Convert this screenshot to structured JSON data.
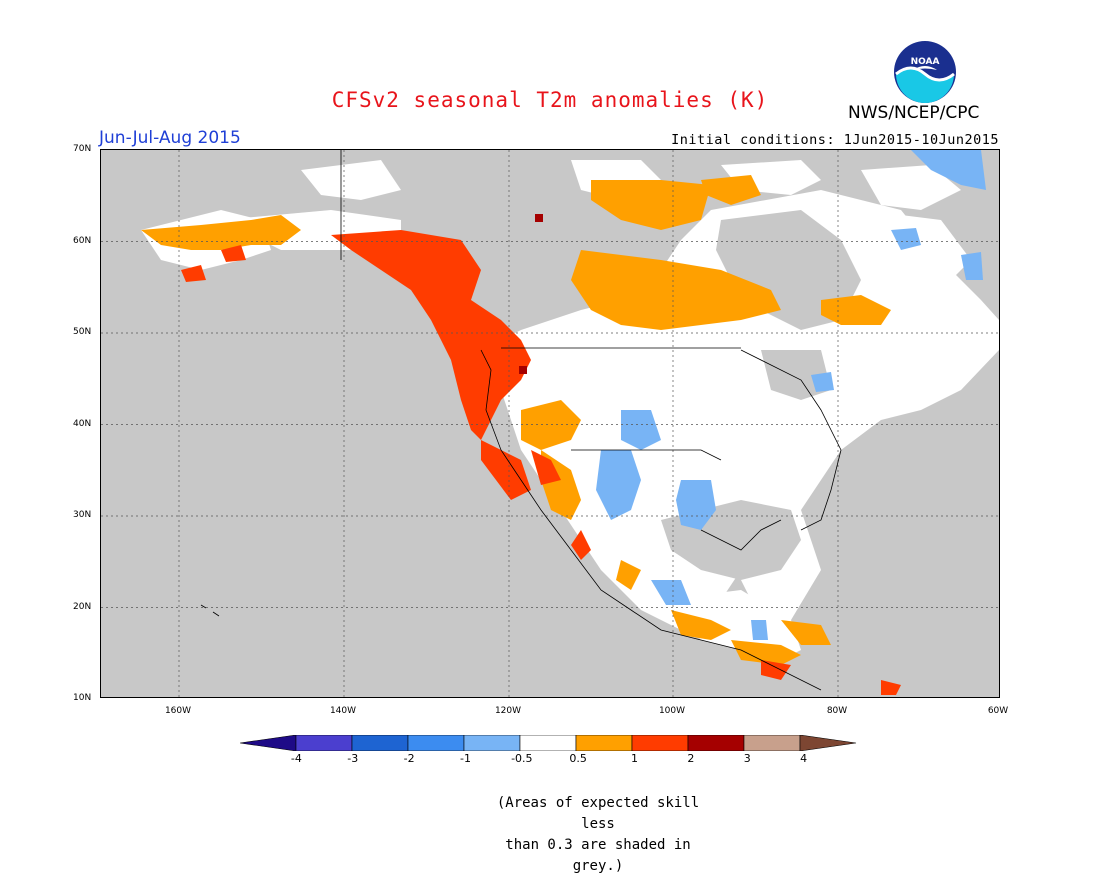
{
  "header": {
    "title": "CFSv2 seasonal T2m anomalies (K)",
    "season": "Jun-Jul-Aug 2015",
    "agency": "NWS/NCEP/CPC",
    "initial_conditions": "Initial conditions: 1Jun2015-10Jun2015",
    "logo_text": "NOAA"
  },
  "map": {
    "lat_labels": [
      "70N",
      "60N",
      "50N",
      "40N",
      "30N",
      "20N",
      "10N"
    ],
    "lon_labels": [
      "160W",
      "140W",
      "120W",
      "100W",
      "80W",
      "60W"
    ],
    "extent": {
      "lon_min": -172,
      "lon_max": -60,
      "lat_min": 10,
      "lat_max": 70
    },
    "background_color": "#c8c8c8",
    "regions": [
      {
        "name": "Alaska",
        "anomaly": "0.5 to 1"
      },
      {
        "name": "Pacific Northwest / British Columbia",
        "anomaly": "1 to 2"
      },
      {
        "name": "Northern Canada",
        "anomaly": "0.5 to 1"
      },
      {
        "name": "Southwest US / Northwest Mexico",
        "anomaly": "1 to 2"
      },
      {
        "name": "Southern Plains / Texas",
        "anomaly": "-1 to -0.5"
      },
      {
        "name": "Eastern US",
        "anomaly": "-0.5 to 0.5"
      }
    ]
  },
  "colorbar": {
    "labels": [
      "-4",
      "-3",
      "-2",
      "-1",
      "-0.5",
      "0.5",
      "1",
      "2",
      "3",
      "4"
    ],
    "colors": [
      "#1e0a87",
      "#4b3fcf",
      "#1e64d2",
      "#3c8cf0",
      "#78b4f5",
      "#ffffff",
      "#ffa000",
      "#ff3c00",
      "#a50000",
      "#c8a08c",
      "#7d4632"
    ]
  },
  "note": {
    "line1": "(Areas of expected skill less",
    "line2": "than 0.3 are shaded in grey.)"
  }
}
